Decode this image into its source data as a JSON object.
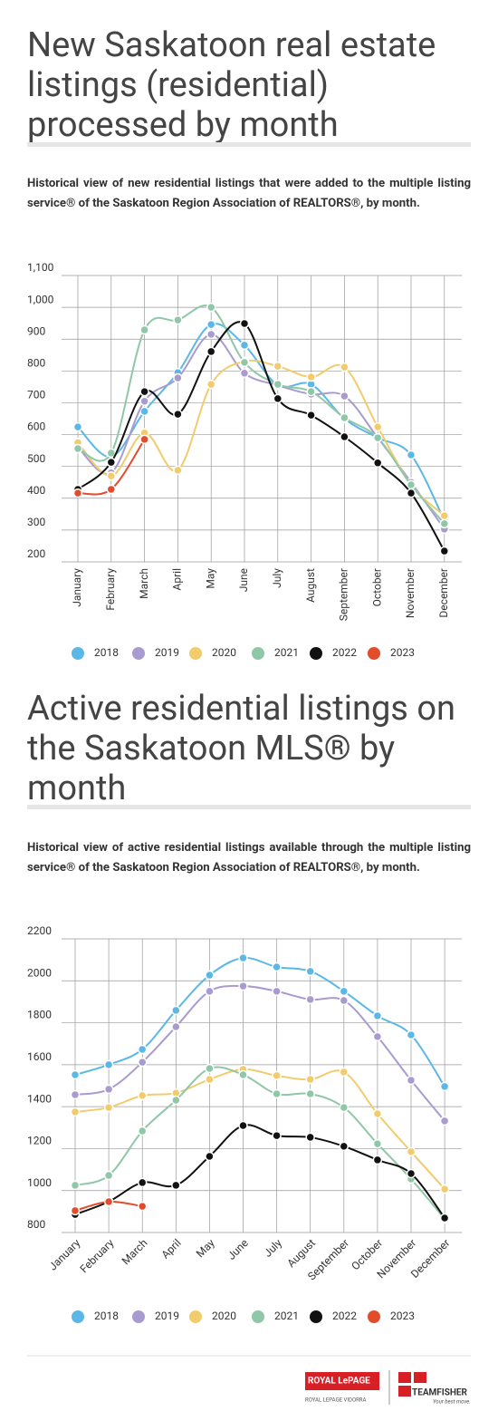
{
  "chart_data": [
    {
      "type": "line",
      "title": "New Saskatoon real estate listings (residential) processed by month",
      "subtitle": "Historical view of new residential listings that were added to the multiple listing service® of the Saskatoon Region Association of REALTORS®, by month.",
      "categories": [
        "January",
        "February",
        "March",
        "April",
        "May",
        "June",
        "July",
        "August",
        "September",
        "October",
        "November",
        "December"
      ],
      "ylim": [
        200,
        1100
      ],
      "yticks": [
        200,
        300,
        400,
        500,
        600,
        700,
        800,
        900,
        {
          "value": 1000,
          "label": "1,000"
        },
        {
          "value": 1100,
          "label": "1,100"
        }
      ],
      "grid": true,
      "series": [
        {
          "name": "2018",
          "color": "#5bb8e6",
          "values": [
            624,
            530,
            673,
            795,
            946,
            881,
            755,
            758,
            650,
            590,
            536,
            330
          ]
        },
        {
          "name": "2019",
          "color": "#a99bd0",
          "values": [
            560,
            480,
            705,
            778,
            915,
            793,
            755,
            727,
            721,
            590,
            450,
            303
          ]
        },
        {
          "name": "2020",
          "color": "#f2cc6c",
          "values": [
            575,
            470,
            605,
            488,
            758,
            830,
            815,
            781,
            812,
            624,
            442,
            345
          ]
        },
        {
          "name": "2021",
          "color": "#8fc7a7",
          "values": [
            556,
            542,
            929,
            960,
            1000,
            827,
            758,
            735,
            653,
            590,
            442,
            320
          ]
        },
        {
          "name": "2022",
          "color": "#111111",
          "values": [
            428,
            513,
            735,
            664,
            861,
            949,
            713,
            661,
            593,
            511,
            416,
            234
          ]
        },
        {
          "name": "2023",
          "color": "#e34c2b",
          "values": [
            416,
            428,
            585,
            null,
            null,
            null,
            null,
            null,
            null,
            null,
            null,
            null
          ]
        }
      ]
    },
    {
      "type": "line",
      "title": "Active residential listings on the Saskatoon MLS® by month",
      "subtitle": "Historical view of active residential listings available through the multiple listing service® of the Saskatoon Region Association of REALTORS®, by month.",
      "categories": [
        "January",
        "February",
        "March",
        "April",
        "May",
        "June",
        "July",
        "August",
        "September",
        "October",
        "November",
        "December"
      ],
      "ylim": [
        800,
        2200
      ],
      "yticks": [
        800,
        1000,
        1200,
        1400,
        1600,
        1800,
        2000,
        2200
      ],
      "grid": true,
      "series": [
        {
          "name": "2018",
          "color": "#5bb8e6",
          "values": [
            1552,
            1600,
            1673,
            1859,
            2027,
            2109,
            2066,
            2045,
            1950,
            1833,
            1742,
            1496
          ]
        },
        {
          "name": "2019",
          "color": "#a99bd0",
          "values": [
            1457,
            1483,
            1612,
            1781,
            1950,
            1975,
            1950,
            1911,
            1906,
            1734,
            1526,
            1332
          ]
        },
        {
          "name": "2020",
          "color": "#f2cc6c",
          "values": [
            1375,
            1396,
            1453,
            1465,
            1530,
            1578,
            1548,
            1530,
            1565,
            1366,
            1185,
            1007
          ]
        },
        {
          "name": "2021",
          "color": "#8fc7a7",
          "values": [
            1025,
            1072,
            1284,
            1431,
            1582,
            1552,
            1461,
            1461,
            1396,
            1223,
            1055,
            865
          ]
        },
        {
          "name": "2022",
          "color": "#111111",
          "values": [
            886,
            947,
            1038,
            1025,
            1163,
            1310,
            1262,
            1254,
            1211,
            1146,
            1081,
            869
          ]
        },
        {
          "name": "2023",
          "color": "#e34c2b",
          "values": [
            904,
            947,
            925,
            null,
            null,
            null,
            null,
            null,
            null,
            null,
            null,
            null
          ]
        }
      ]
    }
  ],
  "footer": {
    "brand": "ROYAL LePAGE",
    "office": "ROYAL LEPAGE VIDORRA",
    "team": "TEAMFISHER",
    "slogan": "Your best move."
  }
}
